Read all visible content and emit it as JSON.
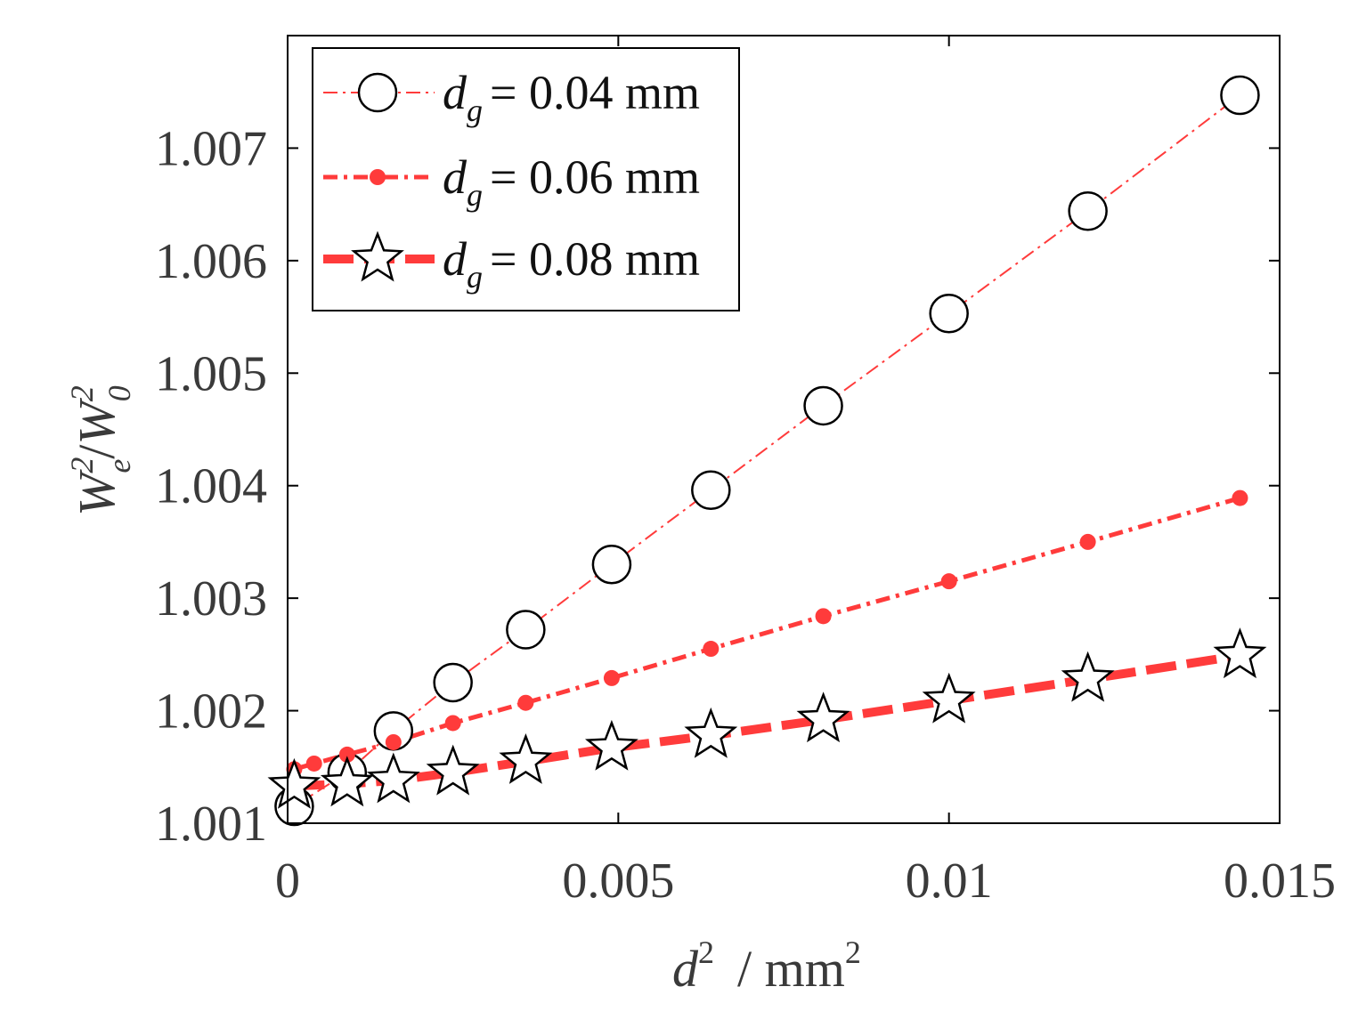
{
  "chart_data": {
    "type": "line",
    "xlabel": {
      "var": "d",
      "sup": "2",
      "unit": "/ mm",
      "unit_sup": "2"
    },
    "ylabel": {
      "var1": "W",
      "sup1": "2",
      "sub1": "e",
      "slash": "/",
      "var2": "W",
      "sup2": "2",
      "sub2": "0"
    },
    "xlim": [
      0,
      0.015
    ],
    "ylim": [
      1.001,
      1.008
    ],
    "xticks": [
      0,
      0.005,
      0.01,
      0.015
    ],
    "xtick_labels": [
      "0",
      "0.005",
      "0.01",
      "0.015"
    ],
    "yticks": [
      1.001,
      1.002,
      1.003,
      1.004,
      1.005,
      1.006,
      1.007
    ],
    "ytick_labels": [
      "1.001",
      "1.002",
      "1.003",
      "1.004",
      "1.005",
      "1.006",
      "1.007"
    ],
    "legend_position": "top-left",
    "series": [
      {
        "name": "d_g = 0.04 mm",
        "legend_var": "d",
        "legend_sub": "g",
        "legend_value": "= 0.04 mm",
        "marker": "circle",
        "line_style": "dashdot-thin",
        "color": "#ff3b3b",
        "x": [
          0.0001,
          0.0009,
          0.0016,
          0.0025,
          0.0036,
          0.0049,
          0.0064,
          0.0081,
          0.01,
          0.0121,
          0.0144
        ],
        "y": [
          1.00115,
          1.00145,
          1.00182,
          1.00225,
          1.00272,
          1.0033,
          1.00396,
          1.00471,
          1.00553,
          1.00644,
          1.00747
        ]
      },
      {
        "name": "d_g = 0.06 mm",
        "legend_var": "d",
        "legend_sub": "g",
        "legend_value": "= 0.06 mm",
        "marker": "dot",
        "line_style": "dashdot-medium",
        "color": "#ff3b3b",
        "x": [
          0.0001,
          0.0004,
          0.0009,
          0.0016,
          0.0025,
          0.0036,
          0.0049,
          0.0064,
          0.0081,
          0.01,
          0.0121,
          0.0144
        ],
        "y": [
          1.00148,
          1.00153,
          1.00161,
          1.00172,
          1.00189,
          1.00207,
          1.00229,
          1.00255,
          1.00284,
          1.00315,
          1.0035,
          1.00389
        ]
      },
      {
        "name": "d_g = 0.08 mm",
        "legend_var": "d",
        "legend_sub": "g",
        "legend_value": "= 0.08 mm",
        "marker": "star",
        "line_style": "dash-thick",
        "color": "#ff3b3b",
        "x": [
          0.0001,
          0.0009,
          0.0016,
          0.0025,
          0.0036,
          0.0049,
          0.0064,
          0.0081,
          0.01,
          0.0121,
          0.0144
        ],
        "y": [
          1.00133,
          1.00135,
          1.00138,
          1.00145,
          1.00155,
          1.00167,
          1.00178,
          1.00192,
          1.00209,
          1.00228,
          1.00249
        ]
      }
    ]
  }
}
